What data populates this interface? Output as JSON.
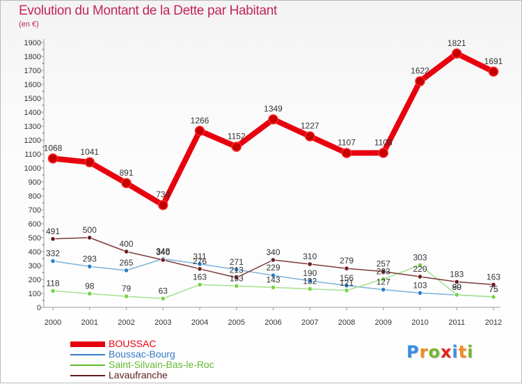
{
  "title": "Evolution du Montant de la Dette par Habitant",
  "subtitle": "(en €)",
  "logo": {
    "text": "Proxiti",
    "letters": [
      {
        "ch": "P",
        "color": "#3a8ee6"
      },
      {
        "ch": "r",
        "color": "#f28c1b"
      },
      {
        "ch": "o",
        "color": "#79b530"
      },
      {
        "ch": "x",
        "color": "#e2231a"
      },
      {
        "ch": "i",
        "color": "#3a8ee6"
      },
      {
        "ch": "t",
        "color": "#f28c1b"
      },
      {
        "ch": "i",
        "color": "#79b530"
      }
    ]
  },
  "chart_data": {
    "type": "line",
    "title": "Evolution du Montant de la Dette par Habitant",
    "subtitle": "(en €)",
    "categories": [
      "2000",
      "2001",
      "2002",
      "2003",
      "2004",
      "2005",
      "2006",
      "2007",
      "2008",
      "2009",
      "2010",
      "2011",
      "2012"
    ],
    "ylim": [
      0,
      1900
    ],
    "yticks": [
      0,
      100,
      200,
      300,
      400,
      500,
      600,
      700,
      800,
      900,
      1000,
      1100,
      1200,
      1300,
      1400,
      1500,
      1600,
      1700,
      1800,
      1900
    ],
    "grid": false,
    "legend_position": "bottom-left",
    "series": [
      {
        "name": "BOUSSAC",
        "color": "#e8000e",
        "legend_color": "#e8000e",
        "point_color": "#c40000",
        "values": [
          1068,
          1041,
          891,
          734,
          1266,
          1152,
          1349,
          1227,
          1107,
          1108,
          1622,
          1821,
          1691
        ],
        "emphasis": true
      },
      {
        "name": "Boussac-Bourg",
        "color": "#7ab3d9",
        "legend_color": "#3478c0",
        "point_color": "#2e7fc8",
        "values": [
          332,
          293,
          265,
          348,
          311,
          271,
          229,
          190,
          156,
          127,
          103,
          89,
          75
        ]
      },
      {
        "name": "Saint-Silvain-Bas-le-Roc",
        "color": "#a5e08a",
        "legend_color": "#62b830",
        "point_color": "#79d34a",
        "values": [
          118,
          98,
          79,
          63,
          163,
          153,
          143,
          132,
          121,
          203,
          303,
          90,
          75
        ]
      },
      {
        "name": "Lavaufranche",
        "color": "#7d3a3a",
        "legend_color": "#5e1a1a",
        "point_color": "#6d1f1f",
        "values": [
          491,
          500,
          400,
          340,
          276,
          213,
          340,
          310,
          279,
          257,
          220,
          183,
          163
        ]
      }
    ]
  }
}
